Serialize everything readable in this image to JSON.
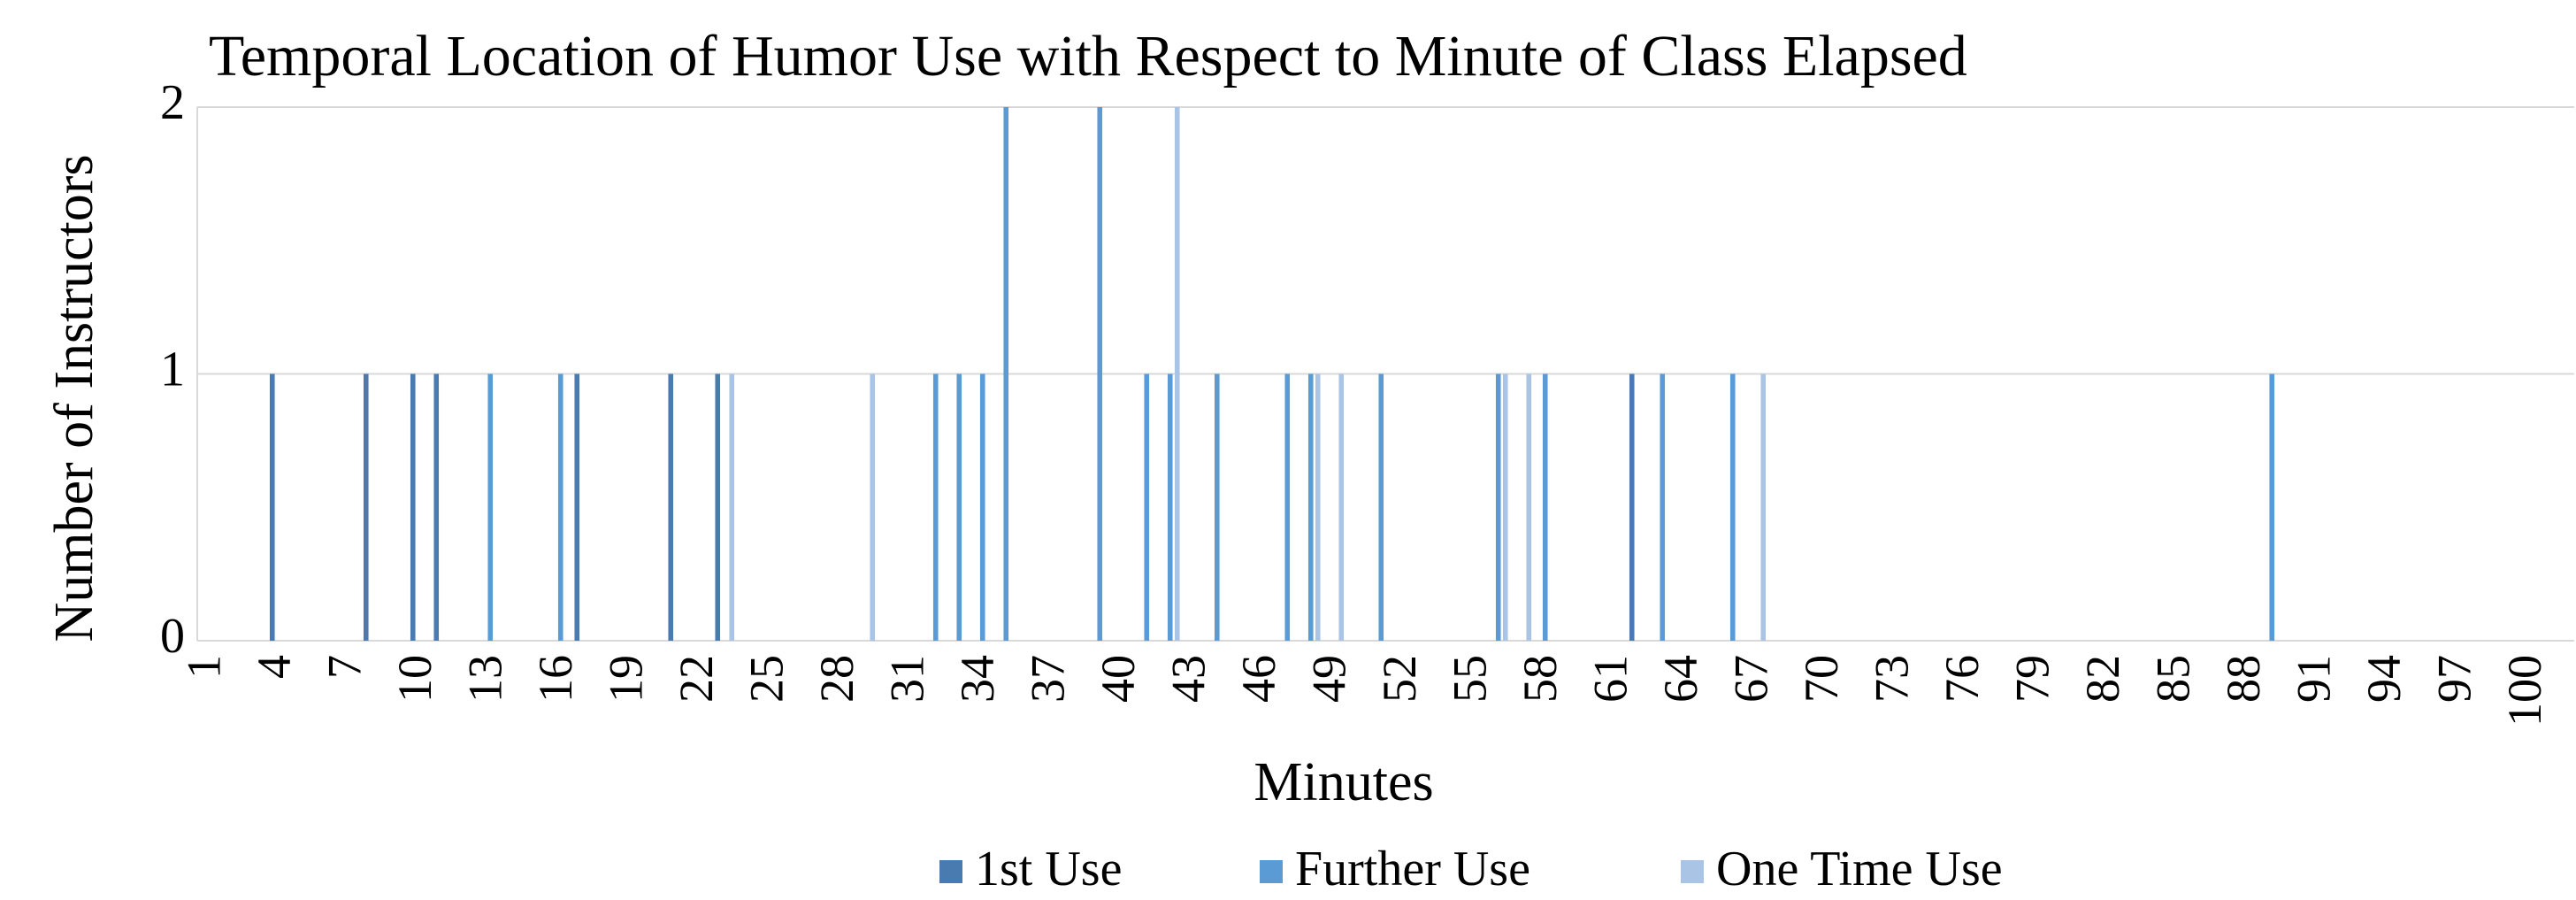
{
  "chart_data": {
    "type": "bar",
    "title": "Temporal Location of Humor Use with Respect to Minute of Class Elapsed",
    "x_label": "Minutes",
    "y_label": "Number of Instructors",
    "xlim": [
      0.5,
      100.5
    ],
    "xticks": [
      1,
      4,
      7,
      10,
      13,
      16,
      19,
      22,
      25,
      28,
      31,
      34,
      37,
      40,
      43,
      46,
      49,
      52,
      55,
      58,
      61,
      64,
      67,
      70,
      73,
      76,
      79,
      82,
      85,
      88,
      91,
      94,
      97,
      100
    ],
    "ylim": [
      0,
      2
    ],
    "yticks": [
      0,
      1,
      2
    ],
    "grid": true,
    "legend": "bottom",
    "series": [
      {
        "name": "1st Use",
        "color": "#4a7bb0",
        "x": [
          4,
          8,
          10,
          11,
          17,
          21,
          23,
          62
        ],
        "values": [
          1,
          1,
          1,
          1,
          1,
          1,
          1,
          1
        ]
      },
      {
        "name": "Further Use",
        "color": "#5b9bd5",
        "x": [
          13,
          16,
          32,
          33,
          34,
          35,
          39,
          41,
          42,
          44,
          47,
          48,
          51,
          56,
          58,
          63,
          66,
          89
        ],
        "values": [
          1,
          1,
          1,
          1,
          1,
          2,
          2,
          1,
          1,
          1,
          1,
          1,
          1,
          1,
          1,
          1,
          1,
          1
        ]
      },
      {
        "name": "One Time Use",
        "color": "#a9c4e4",
        "x": [
          23,
          29,
          42,
          48,
          49,
          56,
          57,
          67
        ],
        "values": [
          1,
          1,
          2,
          1,
          1,
          1,
          1,
          1
        ]
      }
    ]
  }
}
